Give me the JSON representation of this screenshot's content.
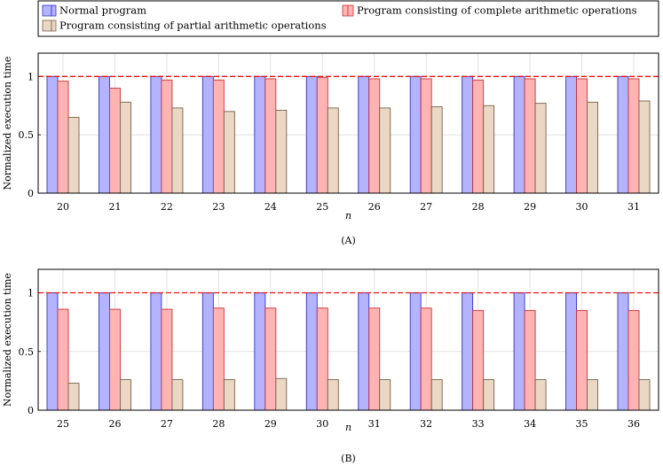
{
  "legend": {
    "items": [
      {
        "label": "Normal program",
        "color": "#b3b3ff",
        "stroke": "#3333cc"
      },
      {
        "label": "Program consisting of complete arithmetic operations",
        "color": "#ffb3b3",
        "stroke": "#cc3333"
      },
      {
        "label": "Program consisting of partial arithmetic operations",
        "color": "#ead8c4",
        "stroke": "#7a6048"
      }
    ]
  },
  "chart_data": [
    {
      "type": "bar",
      "caption": "(A)",
      "xlabel": "n",
      "ylabel": "Normalized execution time",
      "ylim": [
        0,
        1.2
      ],
      "yticks": [
        0,
        0.5,
        1
      ],
      "ytick_labels": [
        "0",
        "0.5",
        "1"
      ],
      "reference_line": 1,
      "categories": [
        "20",
        "21",
        "22",
        "23",
        "24",
        "25",
        "26",
        "27",
        "28",
        "29",
        "30",
        "31"
      ],
      "series": [
        {
          "name": "Normal program",
          "values": [
            1,
            1,
            1,
            1,
            1,
            1,
            1,
            1,
            1,
            1,
            1,
            1
          ]
        },
        {
          "name": "Program consisting of complete arithmetic operations",
          "values": [
            0.96,
            0.9,
            0.97,
            0.97,
            0.98,
            0.99,
            0.98,
            0.98,
            0.97,
            0.98,
            0.98,
            0.98
          ]
        },
        {
          "name": "Program consisting of partial arithmetic operations",
          "values": [
            0.65,
            0.78,
            0.73,
            0.7,
            0.71,
            0.73,
            0.73,
            0.74,
            0.75,
            0.77,
            0.78,
            0.79
          ]
        }
      ]
    },
    {
      "type": "bar",
      "caption": "(B)",
      "xlabel": "n",
      "ylabel": "Normalized execution time",
      "ylim": [
        0,
        1.2
      ],
      "yticks": [
        0,
        0.5,
        1
      ],
      "ytick_labels": [
        "0",
        "0.5",
        "1"
      ],
      "reference_line": 1,
      "categories": [
        "25",
        "26",
        "27",
        "28",
        "29",
        "30",
        "31",
        "32",
        "33",
        "34",
        "35",
        "36"
      ],
      "series": [
        {
          "name": "Normal program",
          "values": [
            1,
            1,
            1,
            1,
            1,
            1,
            1,
            1,
            1,
            1,
            1,
            1
          ]
        },
        {
          "name": "Program consisting of complete arithmetic operations",
          "values": [
            0.86,
            0.86,
            0.86,
            0.87,
            0.87,
            0.87,
            0.87,
            0.87,
            0.85,
            0.85,
            0.85,
            0.85
          ]
        },
        {
          "name": "Program consisting of partial arithmetic operations",
          "values": [
            0.23,
            0.26,
            0.26,
            0.26,
            0.27,
            0.26,
            0.26,
            0.26,
            0.26,
            0.26,
            0.26,
            0.26
          ]
        }
      ]
    }
  ]
}
